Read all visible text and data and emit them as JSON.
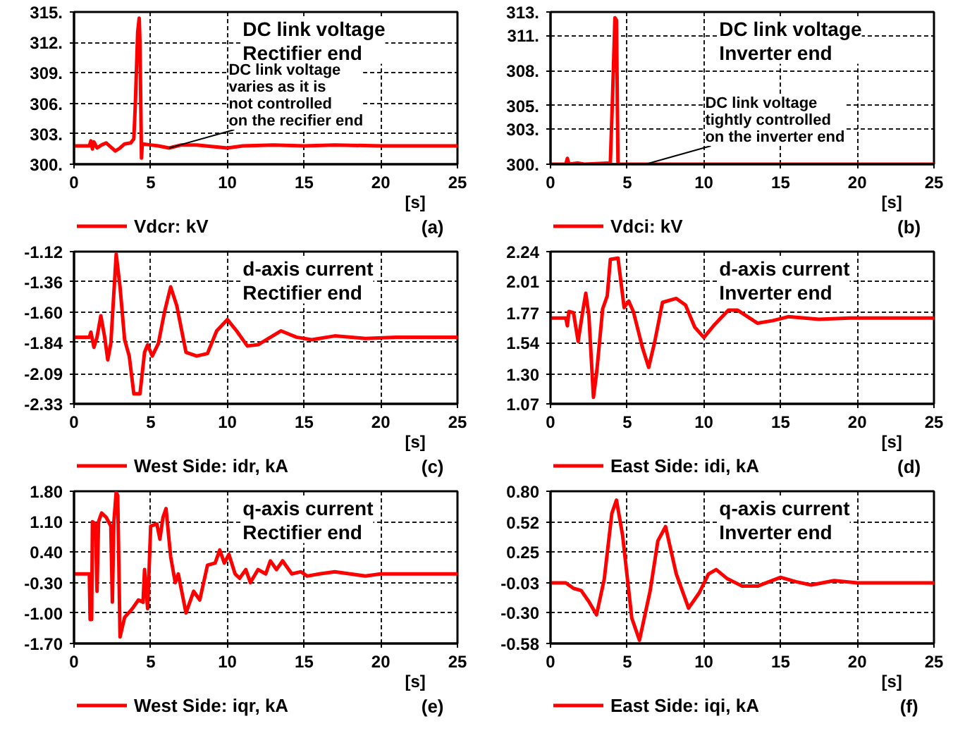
{
  "chart_data": [
    {
      "type": "line",
      "title": "DC link voltage\nRectifier end",
      "xlabel": "[s]",
      "legend": "bottom",
      "grid": true,
      "xlim": [
        0,
        25
      ],
      "xticks": [
        0,
        5,
        10,
        15,
        20,
        25
      ],
      "ylim": [
        300,
        315
      ],
      "yticks": [
        {
          "value": 300,
          "label": "300."
        },
        {
          "value": 303,
          "label": "303."
        },
        {
          "value": 306,
          "label": "306."
        },
        {
          "value": 309,
          "label": "309."
        },
        {
          "value": 312,
          "label": "312."
        },
        {
          "value": 315,
          "label": "315."
        }
      ],
      "annotations": [
        {
          "text": "DC link voltage\nvaries as it is\nnot controlled\non the recifier end",
          "x": 6.2,
          "y": 301.6
        },
        "(a)"
      ],
      "x": [
        0,
        1.0,
        1.1,
        1.2,
        1.3,
        1.5,
        1.8,
        2.1,
        2.4,
        2.7,
        3.0,
        3.3,
        3.7,
        3.9,
        4.0,
        4.15,
        4.25,
        4.3,
        4.4,
        4.45,
        5,
        5.5,
        6.2,
        7,
        8,
        10,
        11,
        13,
        15,
        17,
        20,
        22,
        25
      ],
      "series": [
        {
          "name": "Vdcr: kV",
          "color": "#ff0000",
          "values": [
            301.8,
            301.8,
            302.3,
            301.5,
            302.2,
            301.6,
            301.9,
            302.1,
            301.7,
            301.3,
            301.6,
            302.0,
            302.1,
            302.5,
            306,
            313,
            314.4,
            312,
            300.6,
            302,
            301.9,
            301.8,
            301.6,
            301.9,
            301.9,
            301.6,
            301.8,
            301.9,
            301.8,
            301.9,
            301.8,
            301.8,
            301.8
          ]
        }
      ]
    },
    {
      "type": "line",
      "title": "DC link voltage\nInverter end",
      "xlabel": "[s]",
      "legend": "bottom",
      "grid": true,
      "xlim": [
        0,
        25
      ],
      "xticks": [
        0,
        5,
        10,
        15,
        20,
        25
      ],
      "ylim": [
        300,
        313
      ],
      "yticks": [
        {
          "value": 300,
          "label": "300."
        },
        {
          "value": 303,
          "label": "303."
        },
        {
          "value": 305,
          "label": "305."
        },
        {
          "value": 308,
          "label": "308."
        },
        {
          "value": 311,
          "label": "311."
        },
        {
          "value": 313,
          "label": "313."
        }
      ],
      "annotations": [
        {
          "text": "DC link voltage\ntightly controlled\non the inverter end",
          "x": 6.2,
          "y": 300
        },
        "(b)"
      ],
      "x": [
        0,
        1.0,
        1.1,
        1.2,
        1.8,
        2.2,
        3.9,
        4.05,
        4.2,
        4.3,
        4.4,
        25
      ],
      "series": [
        {
          "name": "Vdci: kV",
          "color": "#ff0000",
          "values": [
            300,
            300,
            300.5,
            300,
            300.1,
            300,
            300.1,
            306,
            312.5,
            312.3,
            300,
            300
          ]
        }
      ]
    },
    {
      "type": "line",
      "title": "d-axis current\nRectifier end",
      "xlabel": "[s]",
      "legend": "bottom",
      "grid": true,
      "xlim": [
        0,
        25
      ],
      "xticks": [
        0,
        5,
        10,
        15,
        20,
        25
      ],
      "ylim": [
        -2.33,
        -1.12
      ],
      "yticks": [
        {
          "value": -2.33,
          "label": "-2.33"
        },
        {
          "value": -2.09,
          "label": "-2.09"
        },
        {
          "value": -1.84,
          "label": "-1.84"
        },
        {
          "value": -1.6,
          "label": "-1.60"
        },
        {
          "value": -1.36,
          "label": "-1.36"
        },
        {
          "value": -1.12,
          "label": "-1.12"
        }
      ],
      "annotations": [
        "(c)"
      ],
      "x": [
        0,
        1.0,
        1.1,
        1.3,
        1.5,
        1.75,
        2.0,
        2.2,
        2.4,
        2.75,
        3.0,
        3.3,
        3.6,
        3.9,
        4.3,
        4.6,
        4.8,
        5.1,
        5.5,
        5.9,
        6.3,
        6.7,
        7.3,
        8,
        8.7,
        9.3,
        10,
        10.6,
        11.3,
        12,
        13.5,
        14.5,
        15.5,
        17,
        19,
        21,
        25
      ],
      "series": [
        {
          "name": "West Side: idr, kA",
          "color": "#ff0000",
          "values": [
            -1.8,
            -1.8,
            -1.76,
            -1.88,
            -1.8,
            -1.63,
            -1.8,
            -1.98,
            -1.85,
            -1.14,
            -1.4,
            -1.82,
            -1.95,
            -2.25,
            -2.25,
            -1.92,
            -1.86,
            -1.95,
            -1.85,
            -1.6,
            -1.4,
            -1.55,
            -1.92,
            -1.95,
            -1.93,
            -1.75,
            -1.66,
            -1.75,
            -1.87,
            -1.86,
            -1.75,
            -1.8,
            -1.82,
            -1.79,
            -1.81,
            -1.8,
            -1.8
          ]
        }
      ]
    },
    {
      "type": "line",
      "title": "d-axis current\nInverter end",
      "xlabel": "[s]",
      "legend": "bottom",
      "grid": true,
      "xlim": [
        0,
        25
      ],
      "xticks": [
        0,
        5,
        10,
        15,
        20,
        25
      ],
      "ylim": [
        1.07,
        2.24
      ],
      "yticks": [
        {
          "value": 1.07,
          "label": "1.07"
        },
        {
          "value": 1.3,
          "label": "1.30"
        },
        {
          "value": 1.54,
          "label": "1.54"
        },
        {
          "value": 1.77,
          "label": "1.77"
        },
        {
          "value": 2.01,
          "label": "2.01"
        },
        {
          "value": 2.24,
          "label": "2.24"
        }
      ],
      "annotations": [
        "(d)"
      ],
      "x": [
        0,
        1.0,
        1.1,
        1.2,
        1.5,
        1.8,
        2.1,
        2.3,
        2.5,
        2.8,
        3.0,
        3.4,
        3.7,
        3.9,
        4.4,
        4.8,
        5.1,
        5.4,
        6.0,
        6.4,
        6.8,
        7.3,
        8.2,
        8.8,
        9.4,
        10,
        10.7,
        11.6,
        12.2,
        13.5,
        14.5,
        15.5,
        17.5,
        19.5,
        21,
        25
      ],
      "series": [
        {
          "name": "East Side: idi, kA",
          "color": "#ff0000",
          "values": [
            1.73,
            1.73,
            1.67,
            1.78,
            1.77,
            1.55,
            1.78,
            1.92,
            1.75,
            1.12,
            1.3,
            1.8,
            1.9,
            2.18,
            2.19,
            1.81,
            1.86,
            1.78,
            1.5,
            1.35,
            1.55,
            1.85,
            1.88,
            1.83,
            1.66,
            1.58,
            1.68,
            1.79,
            1.79,
            1.69,
            1.71,
            1.74,
            1.72,
            1.73,
            1.73,
            1.73
          ]
        }
      ]
    },
    {
      "type": "line",
      "title": "q-axis current\nRectifier end",
      "xlabel": "[s]",
      "legend": "bottom",
      "grid": true,
      "xlim": [
        0,
        25
      ],
      "xticks": [
        0,
        5,
        10,
        15,
        20,
        25
      ],
      "ylim": [
        -1.7,
        1.8
      ],
      "yticks": [
        {
          "value": -1.7,
          "label": "-1.70"
        },
        {
          "value": -1.0,
          "label": "-1.00"
        },
        {
          "value": -0.3,
          "label": "-0.30"
        },
        {
          "value": 0.4,
          "label": "0.40"
        },
        {
          "value": 1.1,
          "label": "1.10"
        },
        {
          "value": 1.8,
          "label": "1.80"
        }
      ],
      "annotations": [
        "(e)"
      ],
      "x": [
        0,
        1.0,
        1.05,
        1.15,
        1.2,
        1.4,
        1.5,
        1.6,
        1.8,
        2.1,
        2.4,
        2.5,
        2.6,
        2.75,
        2.85,
        3.0,
        3.3,
        3.8,
        4.2,
        4.5,
        4.6,
        4.8,
        5.0,
        5.4,
        5.6,
        5.8,
        6.0,
        6.3,
        6.6,
        6.8,
        7.3,
        7.8,
        8.2,
        8.7,
        9.2,
        9.5,
        9.8,
        10.1,
        10.5,
        10.8,
        11.2,
        11.5,
        12,
        12.5,
        12.8,
        13.2,
        13.6,
        14.2,
        14.8,
        15.2,
        16,
        17,
        18,
        19,
        20,
        22,
        25
      ],
      "series": [
        {
          "name": "West Side: iqr, kA",
          "color": "#ff0000",
          "values": [
            -0.1,
            -0.1,
            -1.15,
            -1.15,
            1.1,
            1.05,
            -0.5,
            1.1,
            1.3,
            1.2,
            1.0,
            -0.75,
            1.1,
            1.78,
            1.7,
            -1.55,
            -1.1,
            -0.9,
            -0.7,
            -0.75,
            0.0,
            -0.9,
            1.0,
            1.05,
            0.7,
            1.2,
            1.4,
            0.3,
            -0.3,
            -0.1,
            -1.0,
            -0.5,
            -0.7,
            0.1,
            0.15,
            0.45,
            0.15,
            0.35,
            -0.1,
            -0.2,
            0.0,
            -0.3,
            0.0,
            -0.1,
            0.2,
            0.0,
            0.2,
            -0.1,
            -0.05,
            -0.15,
            -0.1,
            -0.05,
            -0.1,
            -0.15,
            -0.1,
            -0.1,
            -0.1
          ]
        }
      ]
    },
    {
      "type": "line",
      "title": "q-axis current\nInverter end",
      "xlabel": "[s]",
      "legend": "bottom",
      "grid": true,
      "xlim": [
        0,
        25
      ],
      "xticks": [
        0,
        5,
        10,
        15,
        20,
        25
      ],
      "ylim": [
        -0.58,
        0.8
      ],
      "yticks": [
        {
          "value": -0.58,
          "label": "-0.58"
        },
        {
          "value": -0.3,
          "label": "-0.30"
        },
        {
          "value": -0.03,
          "label": "-0.03"
        },
        {
          "value": 0.25,
          "label": "0.25"
        },
        {
          "value": 0.52,
          "label": "0.52"
        },
        {
          "value": 0.8,
          "label": "0.80"
        }
      ],
      "annotations": [
        "(f)"
      ],
      "x": [
        0,
        1.0,
        1.5,
        2.0,
        2.5,
        3.0,
        3.5,
        4.0,
        4.3,
        4.7,
        5.3,
        5.8,
        6.5,
        7.0,
        7.5,
        8.2,
        9.0,
        9.7,
        10.3,
        10.8,
        11.5,
        12.5,
        13.5,
        15,
        16,
        17,
        18.5,
        20,
        25
      ],
      "series": [
        {
          "name": "East Side: iqi, kA",
          "color": "#ff0000",
          "values": [
            -0.03,
            -0.03,
            -0.08,
            -0.1,
            -0.2,
            -0.32,
            0.0,
            0.6,
            0.72,
            0.4,
            -0.35,
            -0.55,
            -0.1,
            0.35,
            0.48,
            0.05,
            -0.26,
            -0.12,
            0.05,
            0.09,
            0.01,
            -0.06,
            -0.06,
            0.02,
            -0.02,
            -0.05,
            -0.01,
            -0.03,
            -0.03
          ]
        }
      ]
    }
  ]
}
